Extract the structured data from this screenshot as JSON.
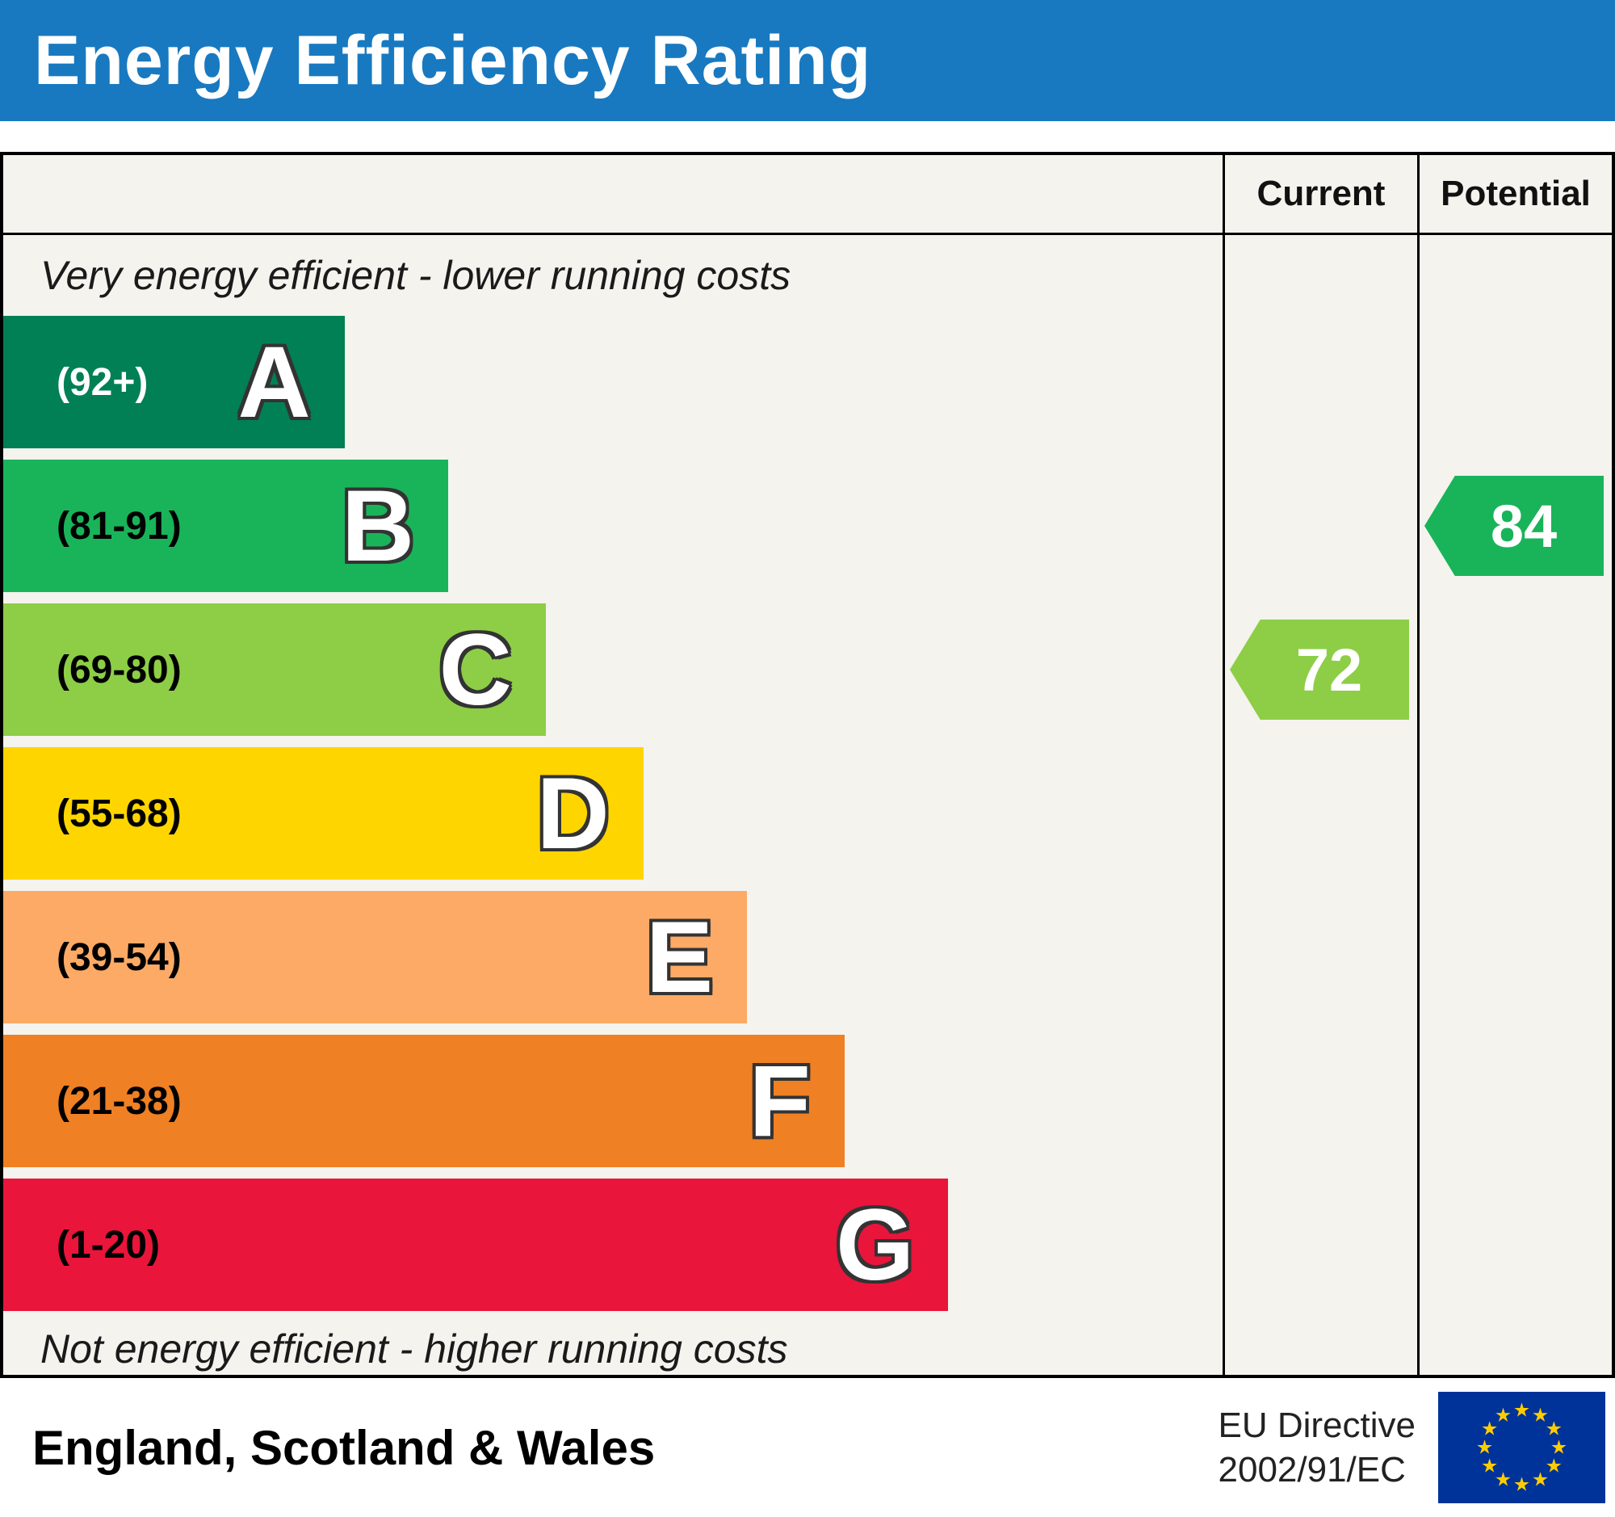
{
  "header": {
    "title": "Energy Efficiency Rating",
    "bg_color": "#1879c0"
  },
  "columns": {
    "current_label": "Current",
    "potential_label": "Potential"
  },
  "notes": {
    "top": "Very energy efficient - lower running costs",
    "bottom": "Not energy efficient - higher running costs"
  },
  "bands": [
    {
      "letter": "A",
      "range": "(92+)",
      "color": "#008054",
      "width_pct": 28,
      "range_text_color": "#ffffff"
    },
    {
      "letter": "B",
      "range": "(81-91)",
      "color": "#19b459",
      "width_pct": 36.5,
      "range_text_color": "#000000"
    },
    {
      "letter": "C",
      "range": "(69-80)",
      "color": "#8dce46",
      "width_pct": 44.5,
      "range_text_color": "#000000"
    },
    {
      "letter": "D",
      "range": "(55-68)",
      "color": "#ffd500",
      "width_pct": 52.5,
      "range_text_color": "#000000"
    },
    {
      "letter": "E",
      "range": "(39-54)",
      "color": "#fcaa65",
      "width_pct": 61,
      "range_text_color": "#000000"
    },
    {
      "letter": "F",
      "range": "(21-38)",
      "color": "#ef8023",
      "width_pct": 69,
      "range_text_color": "#000000"
    },
    {
      "letter": "G",
      "range": "(1-20)",
      "color": "#e9153b",
      "width_pct": 77.5,
      "range_text_color": "#000000"
    }
  ],
  "current": {
    "value": "72",
    "color": "#8dce46",
    "band_index": 2
  },
  "potential": {
    "value": "84",
    "color": "#19b459",
    "band_index": 1
  },
  "footer": {
    "region": "England, Scotland & Wales",
    "directive_line1": "EU Directive",
    "directive_line2": "2002/91/EC",
    "flag_field_color": "#003399",
    "flag_star_color": "#ffcc00"
  },
  "chart_data": {
    "type": "bar",
    "title": "Energy Efficiency Rating",
    "categories": [
      "A",
      "B",
      "C",
      "D",
      "E",
      "F",
      "G"
    ],
    "band_ranges": [
      "92+",
      "81-91",
      "69-80",
      "55-68",
      "39-54",
      "21-38",
      "1-20"
    ],
    "band_colors": [
      "#008054",
      "#19b459",
      "#8dce46",
      "#ffd500",
      "#fcaa65",
      "#ef8023",
      "#e9153b"
    ],
    "bar_width_pct": [
      28,
      36.5,
      44.5,
      52.5,
      61,
      69,
      77.5
    ],
    "series": [
      {
        "name": "Current",
        "value": 72,
        "band": "C"
      },
      {
        "name": "Potential",
        "value": 84,
        "band": "B"
      }
    ],
    "annotations": [
      "Very energy efficient - lower running costs",
      "Not energy efficient - higher running costs"
    ],
    "region": "England, Scotland & Wales",
    "directive": "EU Directive 2002/91/EC",
    "scale_range": [
      1,
      100
    ],
    "legend_position": "none",
    "grid": false
  }
}
